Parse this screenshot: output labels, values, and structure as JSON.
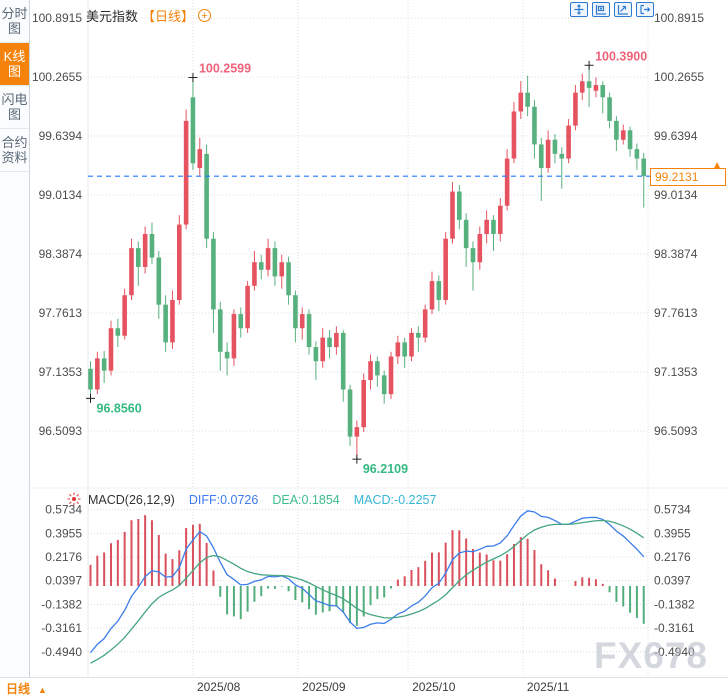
{
  "header": {
    "title": "美元指数",
    "period": "【日线】"
  },
  "sidebar": {
    "tabs": [
      {
        "label": "分时图"
      },
      {
        "label": "K线图"
      },
      {
        "label": "闪电图"
      },
      {
        "label": "合约资料"
      }
    ]
  },
  "toolbar": {
    "icons": [
      "crosshair",
      "box-zoom",
      "zoom-restore",
      "exit-right"
    ]
  },
  "macd_legend": {
    "name": "MACD(26,12,9)",
    "diff": "DIFF:0.0726",
    "dea": "DEA:0.1854",
    "macd": "MACD:-0.2257"
  },
  "price_tag": {
    "value": "99.2131"
  },
  "bottom_bar": {
    "period_label": "日线"
  },
  "watermark": "FX678",
  "chart_data": {
    "type": "candlestick",
    "title": "美元指数 日线 (USD Index, daily) with MACD(26,12,9)",
    "price_axis_ticks": [
      100.8915,
      100.2655,
      99.6394,
      99.0134,
      98.3874,
      97.7613,
      97.1353,
      96.5093
    ],
    "macd_axis_ticks": [
      0.5734,
      0.3955,
      0.2176,
      0.0397,
      -0.1382,
      -0.3161,
      -0.494
    ],
    "current_price": 99.2131,
    "macd_values": {
      "params": [
        26,
        12,
        9
      ],
      "diff": 0.0726,
      "dea": 0.1854,
      "macd": -0.2257
    },
    "months": [
      {
        "label": "2025/08",
        "index": 15
      },
      {
        "label": "2025/09",
        "index": 30.4
      },
      {
        "label": "2025/10",
        "index": 46.5
      },
      {
        "label": "2025/11",
        "index": 63.3
      }
    ],
    "annotations": [
      {
        "index": 0,
        "price": 96.856,
        "label": "96.8560",
        "kind": "low"
      },
      {
        "index": 15,
        "price": 100.2599,
        "label": "100.2599",
        "kind": "high"
      },
      {
        "index": 39,
        "price": 96.2109,
        "label": "96.2109",
        "kind": "low"
      },
      {
        "index": 73,
        "price": 100.39,
        "label": "100.3900",
        "kind": "high"
      }
    ],
    "candles_ohlc": [
      [
        97.17,
        97.25,
        96.856,
        96.95
      ],
      [
        96.95,
        97.35,
        96.9,
        97.28
      ],
      [
        97.28,
        97.36,
        97.02,
        97.15
      ],
      [
        97.15,
        97.68,
        97.1,
        97.6
      ],
      [
        97.6,
        97.7,
        97.4,
        97.52
      ],
      [
        97.52,
        98.02,
        97.48,
        97.95
      ],
      [
        97.95,
        98.55,
        97.9,
        98.45
      ],
      [
        98.45,
        98.52,
        98.05,
        98.25
      ],
      [
        98.25,
        98.68,
        98.18,
        98.6
      ],
      [
        98.6,
        98.72,
        98.28,
        98.35
      ],
      [
        98.35,
        98.42,
        97.7,
        97.85
      ],
      [
        97.85,
        97.95,
        97.35,
        97.45
      ],
      [
        97.45,
        98.0,
        97.38,
        97.9
      ],
      [
        97.9,
        98.8,
        97.85,
        98.7
      ],
      [
        98.7,
        99.92,
        98.65,
        99.8
      ],
      [
        100.05,
        100.2599,
        99.28,
        99.35
      ],
      [
        99.3,
        99.62,
        99.22,
        99.5
      ],
      [
        99.45,
        99.55,
        98.45,
        98.55
      ],
      [
        98.55,
        98.62,
        97.55,
        97.8
      ],
      [
        97.8,
        97.88,
        97.15,
        97.35
      ],
      [
        97.35,
        97.45,
        97.1,
        97.28
      ],
      [
        97.28,
        97.8,
        97.2,
        97.75
      ],
      [
        97.75,
        97.82,
        97.5,
        97.6
      ],
      [
        97.6,
        98.1,
        97.55,
        98.05
      ],
      [
        98.05,
        98.42,
        98.0,
        98.3
      ],
      [
        98.3,
        98.38,
        98.12,
        98.22
      ],
      [
        98.22,
        98.55,
        98.15,
        98.45
      ],
      [
        98.45,
        98.52,
        98.05,
        98.15
      ],
      [
        98.15,
        98.38,
        98.02,
        98.3
      ],
      [
        98.3,
        98.36,
        97.85,
        97.95
      ],
      [
        97.95,
        98.0,
        97.45,
        97.6
      ],
      [
        97.6,
        97.82,
        97.48,
        97.75
      ],
      [
        97.75,
        97.8,
        97.32,
        97.4
      ],
      [
        97.4,
        97.46,
        97.05,
        97.25
      ],
      [
        97.25,
        97.6,
        97.18,
        97.5
      ],
      [
        97.5,
        97.58,
        97.28,
        97.4
      ],
      [
        97.4,
        97.62,
        97.32,
        97.55
      ],
      [
        97.55,
        97.58,
        96.82,
        96.95
      ],
      [
        96.95,
        97.0,
        96.35,
        96.45
      ],
      [
        96.45,
        96.62,
        96.2109,
        96.55
      ],
      [
        96.55,
        97.12,
        96.5,
        97.05
      ],
      [
        97.05,
        97.32,
        96.95,
        97.25
      ],
      [
        97.25,
        97.3,
        96.98,
        97.1
      ],
      [
        97.1,
        97.15,
        96.8,
        96.9
      ],
      [
        96.9,
        97.35,
        96.85,
        97.3
      ],
      [
        97.3,
        97.52,
        97.22,
        97.45
      ],
      [
        97.45,
        97.5,
        97.18,
        97.3
      ],
      [
        97.3,
        97.6,
        97.25,
        97.55
      ],
      [
        97.55,
        97.62,
        97.35,
        97.5
      ],
      [
        97.5,
        97.85,
        97.45,
        97.8
      ],
      [
        97.8,
        98.2,
        97.75,
        98.1
      ],
      [
        98.1,
        98.16,
        97.78,
        97.9
      ],
      [
        97.9,
        98.62,
        97.85,
        98.55
      ],
      [
        98.55,
        99.15,
        98.5,
        99.05
      ],
      [
        99.05,
        99.12,
        98.65,
        98.75
      ],
      [
        98.75,
        98.82,
        98.25,
        98.45
      ],
      [
        98.45,
        98.52,
        98.0,
        98.3
      ],
      [
        98.3,
        98.68,
        98.22,
        98.6
      ],
      [
        98.6,
        98.85,
        98.5,
        98.75
      ],
      [
        98.75,
        98.8,
        98.42,
        98.6
      ],
      [
        98.6,
        98.98,
        98.52,
        98.9
      ],
      [
        98.9,
        99.5,
        98.85,
        99.4
      ],
      [
        99.4,
        100.0,
        99.35,
        99.9
      ],
      [
        99.9,
        100.22,
        99.82,
        100.1
      ],
      [
        100.1,
        100.28,
        99.85,
        99.95
      ],
      [
        99.95,
        100.02,
        99.4,
        99.55
      ],
      [
        99.55,
        99.62,
        98.95,
        99.3
      ],
      [
        99.3,
        99.7,
        99.25,
        99.6
      ],
      [
        99.6,
        99.66,
        99.35,
        99.45
      ],
      [
        99.45,
        99.52,
        99.08,
        99.4
      ],
      [
        99.4,
        99.82,
        99.35,
        99.75
      ],
      [
        99.75,
        100.18,
        99.7,
        100.1
      ],
      [
        100.1,
        100.3,
        100.02,
        100.22
      ],
      [
        100.22,
        100.39,
        99.95,
        100.15
      ],
      [
        100.12,
        100.26,
        100.05,
        100.18
      ],
      [
        100.18,
        100.22,
        99.88,
        100.05
      ],
      [
        100.05,
        100.1,
        99.72,
        99.8
      ],
      [
        99.8,
        99.85,
        99.48,
        99.6
      ],
      [
        99.6,
        99.76,
        99.55,
        99.7
      ],
      [
        99.7,
        99.74,
        99.42,
        99.5
      ],
      [
        99.5,
        99.56,
        99.28,
        99.4
      ],
      [
        99.4,
        99.46,
        98.88,
        99.2131
      ]
    ],
    "colors": {
      "bull": "#e65360",
      "bear": "#57b17e",
      "diff_line": "#3b7de9",
      "dea_line": "#44a57f",
      "hist_pos": "#d9505c",
      "hist_neg": "#52ad7c",
      "current_line": "#2079ff",
      "accent": "#f5820a",
      "high_label": "#ef6379",
      "low_label": "#35b882"
    }
  }
}
